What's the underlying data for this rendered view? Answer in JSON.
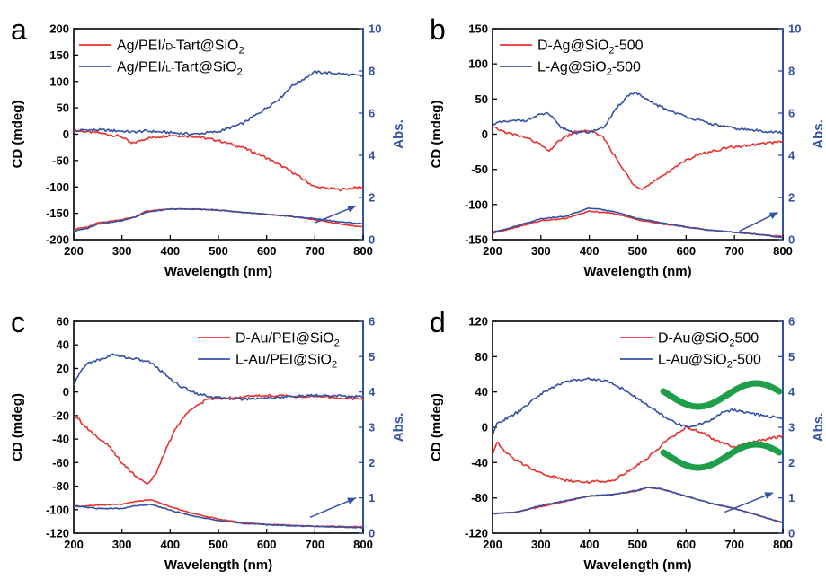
{
  "colors": {
    "red": "#e8312e",
    "blue": "#3450a3",
    "green": "#1e9e4a"
  },
  "chart_data": [
    {
      "type": "line",
      "panel_label": "a",
      "xlabel": "Wavelength (nm)",
      "ylabel": "CD (mdeg)",
      "y2label": "Abs.",
      "xlim": [
        200,
        800
      ],
      "ylim": [
        -200,
        200
      ],
      "y2lim": [
        0,
        10
      ],
      "xticks": [
        200,
        300,
        400,
        500,
        600,
        700,
        800
      ],
      "yticks": [
        -200,
        -150,
        -100,
        -50,
        0,
        50,
        100,
        150,
        200
      ],
      "y2ticks": [
        0,
        2,
        4,
        6,
        8,
        10
      ],
      "legend": [
        {
          "label": "Ag/PEI/",
          "small": "D-",
          "mid": "Tart@SiO",
          "sub": "2",
          "tail": ""
        },
        {
          "label": "Ag/PEI/",
          "small": "L-",
          "mid": "Tart@SiO",
          "sub": "2",
          "tail": ""
        }
      ],
      "series": [
        {
          "name": "Ag/PEI/D-Tart@SiO2",
          "color": "red",
          "axis": "left",
          "x": [
            200,
            220,
            250,
            300,
            320,
            350,
            400,
            450,
            500,
            550,
            600,
            650,
            700,
            750,
            800
          ],
          "y": [
            8,
            5,
            3,
            -5,
            -18,
            -8,
            -2,
            -4,
            -12,
            -25,
            -45,
            -70,
            -100,
            -105,
            -100
          ]
        },
        {
          "name": "Ag/PEI/L-Tart@SiO2",
          "color": "blue",
          "axis": "left",
          "x": [
            200,
            220,
            250,
            300,
            320,
            350,
            400,
            450,
            500,
            550,
            600,
            630,
            650,
            700,
            750,
            800
          ],
          "y": [
            5,
            8,
            8,
            6,
            4,
            6,
            3,
            0,
            5,
            20,
            50,
            70,
            90,
            118,
            115,
            110
          ]
        },
        {
          "name": "Ag/PEI/D-Tart@SiO2 (Abs.)",
          "color": "red",
          "axis": "right",
          "x": [
            200,
            230,
            250,
            300,
            330,
            350,
            400,
            450,
            500,
            550,
            600,
            650,
            700,
            750,
            800
          ],
          "y": [
            0.5,
            0.6,
            0.8,
            0.95,
            1.1,
            1.35,
            1.45,
            1.45,
            1.4,
            1.3,
            1.2,
            1.1,
            0.95,
            0.75,
            0.6
          ]
        },
        {
          "name": "Ag/PEI/L-Tart@SiO2 (Abs.)",
          "color": "blue",
          "axis": "right",
          "x": [
            200,
            230,
            250,
            300,
            330,
            350,
            400,
            450,
            500,
            550,
            600,
            650,
            700,
            750,
            800
          ],
          "y": [
            0.4,
            0.55,
            0.75,
            0.9,
            1.1,
            1.3,
            1.45,
            1.45,
            1.4,
            1.3,
            1.2,
            1.1,
            1.0,
            0.85,
            0.75
          ]
        }
      ],
      "arrow": {
        "from": [
          700,
          0.8
        ],
        "to": [
          785,
          1.6
        ],
        "axis": "right"
      },
      "green_waves": false
    },
    {
      "type": "line",
      "panel_label": "b",
      "xlabel": "Wavelength (nm)",
      "ylabel": "CD (mdeg)",
      "y2label": "Abs.",
      "xlim": [
        200,
        800
      ],
      "ylim": [
        -150,
        150
      ],
      "y2lim": [
        0,
        10
      ],
      "xticks": [
        200,
        300,
        400,
        500,
        600,
        700,
        800
      ],
      "yticks": [
        -150,
        -100,
        -50,
        0,
        50,
        100,
        150
      ],
      "y2ticks": [
        0,
        2,
        4,
        6,
        8,
        10
      ],
      "legend": [
        {
          "label": "D-Ag@SiO",
          "small": "",
          "mid": "",
          "sub": "2",
          "tail": "-500"
        },
        {
          "label": "L-Ag@SiO",
          "small": "",
          "mid": "",
          "sub": "2",
          "tail": "-500"
        }
      ],
      "series": [
        {
          "name": "D-Ag@SiO2-500",
          "color": "red",
          "axis": "left",
          "x": [
            200,
            230,
            270,
            300,
            315,
            340,
            370,
            400,
            430,
            460,
            490,
            510,
            540,
            580,
            620,
            680,
            740,
            800
          ],
          "y": [
            10,
            2,
            -5,
            -15,
            -25,
            -8,
            3,
            5,
            -5,
            -40,
            -70,
            -78,
            -65,
            -45,
            -30,
            -20,
            -15,
            -10
          ]
        },
        {
          "name": "L-Ag@SiO2-500",
          "color": "blue",
          "axis": "left",
          "x": [
            200,
            230,
            270,
            300,
            315,
            340,
            370,
            400,
            430,
            460,
            480,
            495,
            520,
            560,
            600,
            650,
            700,
            750,
            800
          ],
          "y": [
            15,
            18,
            20,
            28,
            30,
            10,
            2,
            3,
            10,
            40,
            55,
            60,
            48,
            35,
            25,
            15,
            8,
            5,
            2
          ]
        },
        {
          "name": "D-Ag@SiO2-500 (Abs.)",
          "color": "red",
          "axis": "right",
          "x": [
            200,
            250,
            300,
            350,
            400,
            450,
            500,
            550,
            600,
            650,
            700,
            750,
            800
          ],
          "y": [
            0.3,
            0.6,
            0.9,
            1.0,
            1.35,
            1.25,
            0.95,
            0.75,
            0.6,
            0.45,
            0.35,
            0.25,
            0.15
          ]
        },
        {
          "name": "L-Ag@SiO2-500 (Abs.)",
          "color": "blue",
          "axis": "right",
          "x": [
            200,
            250,
            300,
            350,
            400,
            450,
            500,
            550,
            600,
            650,
            700,
            750,
            800
          ],
          "y": [
            0.35,
            0.65,
            1.0,
            1.1,
            1.5,
            1.35,
            1.0,
            0.8,
            0.6,
            0.45,
            0.35,
            0.25,
            0.1
          ]
        }
      ],
      "arrow": {
        "from": [
          710,
          0.4
        ],
        "to": [
          790,
          1.3
        ],
        "axis": "right"
      },
      "green_waves": false
    },
    {
      "type": "line",
      "panel_label": "c",
      "xlabel": "Wavelength (nm)",
      "ylabel": "CD (mdeg)",
      "y2label": "Abs.",
      "xlim": [
        200,
        800
      ],
      "ylim": [
        -120,
        60
      ],
      "y2lim": [
        0,
        6
      ],
      "xticks": [
        200,
        300,
        400,
        500,
        600,
        700,
        800
      ],
      "yticks": [
        -120,
        -100,
        -80,
        -60,
        -40,
        -20,
        0,
        20,
        40,
        60
      ],
      "y2ticks": [
        0,
        1,
        2,
        3,
        4,
        5,
        6
      ],
      "legend": [
        {
          "label": "D-Au/PEI@SiO",
          "small": "",
          "mid": "",
          "sub": "2",
          "tail": ""
        },
        {
          "label": "L-Au/PEI@SiO",
          "small": "",
          "mid": "",
          "sub": "2",
          "tail": ""
        }
      ],
      "series": [
        {
          "name": "D-Au/PEI@SiO2",
          "color": "red",
          "axis": "left",
          "x": [
            200,
            210,
            220,
            240,
            270,
            300,
            330,
            355,
            370,
            390,
            410,
            440,
            480,
            550,
            600,
            700,
            800
          ],
          "y": [
            -20,
            -22,
            -28,
            -35,
            -45,
            -60,
            -72,
            -78,
            -70,
            -50,
            -32,
            -15,
            -6,
            -4,
            -3,
            -4,
            -6
          ]
        },
        {
          "name": "L-Au/PEI@SiO2",
          "color": "blue",
          "axis": "left",
          "x": [
            200,
            210,
            230,
            260,
            280,
            300,
            330,
            360,
            390,
            420,
            460,
            500,
            550,
            600,
            700,
            800
          ],
          "y": [
            5,
            15,
            25,
            28,
            32,
            30,
            28,
            25,
            15,
            5,
            -2,
            -5,
            -6,
            -5,
            -3,
            -4
          ]
        },
        {
          "name": "D-Au/PEI@SiO2 (Abs.)",
          "color": "red",
          "axis": "right",
          "x": [
            200,
            250,
            300,
            330,
            360,
            400,
            450,
            500,
            550,
            600,
            700,
            800
          ],
          "y": [
            0.75,
            0.8,
            0.82,
            0.9,
            0.95,
            0.75,
            0.55,
            0.4,
            0.3,
            0.25,
            0.2,
            0.18
          ]
        },
        {
          "name": "L-Au/PEI@SiO2 (Abs.)",
          "color": "blue",
          "axis": "right",
          "x": [
            200,
            250,
            300,
            330,
            360,
            400,
            450,
            500,
            550,
            600,
            700,
            800
          ],
          "y": [
            0.78,
            0.7,
            0.7,
            0.78,
            0.82,
            0.65,
            0.48,
            0.36,
            0.28,
            0.24,
            0.19,
            0.16
          ]
        }
      ],
      "arrow": {
        "from": [
          690,
          0.45
        ],
        "to": [
          785,
          1.0
        ],
        "axis": "right"
      },
      "green_waves": false
    },
    {
      "type": "line",
      "panel_label": "d",
      "xlabel": "Wavelength (nm)",
      "ylabel": "CD (mdeg)",
      "y2label": "Abs.",
      "xlim": [
        200,
        800
      ],
      "ylim": [
        -120,
        120
      ],
      "y2lim": [
        0,
        6
      ],
      "xticks": [
        200,
        300,
        400,
        500,
        600,
        700,
        800
      ],
      "yticks": [
        -120,
        -80,
        -40,
        0,
        40,
        80,
        120
      ],
      "y2ticks": [
        0,
        1,
        2,
        3,
        4,
        5,
        6
      ],
      "legend": [
        {
          "label": "D-Au@SiO",
          "small": "",
          "mid": "",
          "sub": "2",
          "tail": "500"
        },
        {
          "label": "L-Au@SiO",
          "small": "",
          "mid": "",
          "sub": "2",
          "tail": "-500"
        }
      ],
      "series": [
        {
          "name": "D-Au@SiO2 500",
          "color": "red",
          "axis": "left",
          "x": [
            200,
            210,
            220,
            250,
            300,
            350,
            400,
            450,
            480,
            520,
            560,
            600,
            630,
            660,
            700,
            750,
            800
          ],
          "y": [
            -30,
            -15,
            -25,
            -38,
            -52,
            -60,
            -62,
            -60,
            -50,
            -35,
            -15,
            0,
            -5,
            -15,
            -22,
            -15,
            -10
          ]
        },
        {
          "name": "L-Au@SiO2-500",
          "color": "blue",
          "axis": "left",
          "x": [
            200,
            210,
            230,
            260,
            300,
            350,
            400,
            440,
            480,
            520,
            560,
            600,
            640,
            680,
            700,
            740,
            800
          ],
          "y": [
            -10,
            5,
            10,
            20,
            38,
            52,
            55,
            52,
            40,
            25,
            10,
            0,
            5,
            18,
            20,
            15,
            10
          ]
        },
        {
          "name": "D-Au@SiO2 500 (Abs.)",
          "color": "red",
          "axis": "right",
          "x": [
            200,
            250,
            300,
            350,
            400,
            450,
            500,
            520,
            550,
            600,
            650,
            700,
            750,
            800
          ],
          "y": [
            0.55,
            0.6,
            0.75,
            0.9,
            1.05,
            1.1,
            1.2,
            1.3,
            1.25,
            1.05,
            0.85,
            0.7,
            0.5,
            0.3
          ]
        },
        {
          "name": "L-Au@SiO2-500 (Abs.)",
          "color": "blue",
          "axis": "right",
          "x": [
            200,
            250,
            300,
            350,
            400,
            450,
            500,
            520,
            550,
            600,
            650,
            700,
            750,
            800
          ],
          "y": [
            0.55,
            0.6,
            0.78,
            0.92,
            1.05,
            1.1,
            1.22,
            1.3,
            1.25,
            1.05,
            0.85,
            0.7,
            0.5,
            0.3
          ]
        }
      ],
      "arrow": {
        "from": [
          680,
          0.6
        ],
        "to": [
          780,
          1.15
        ],
        "axis": "right"
      },
      "green_waves": true
    }
  ]
}
